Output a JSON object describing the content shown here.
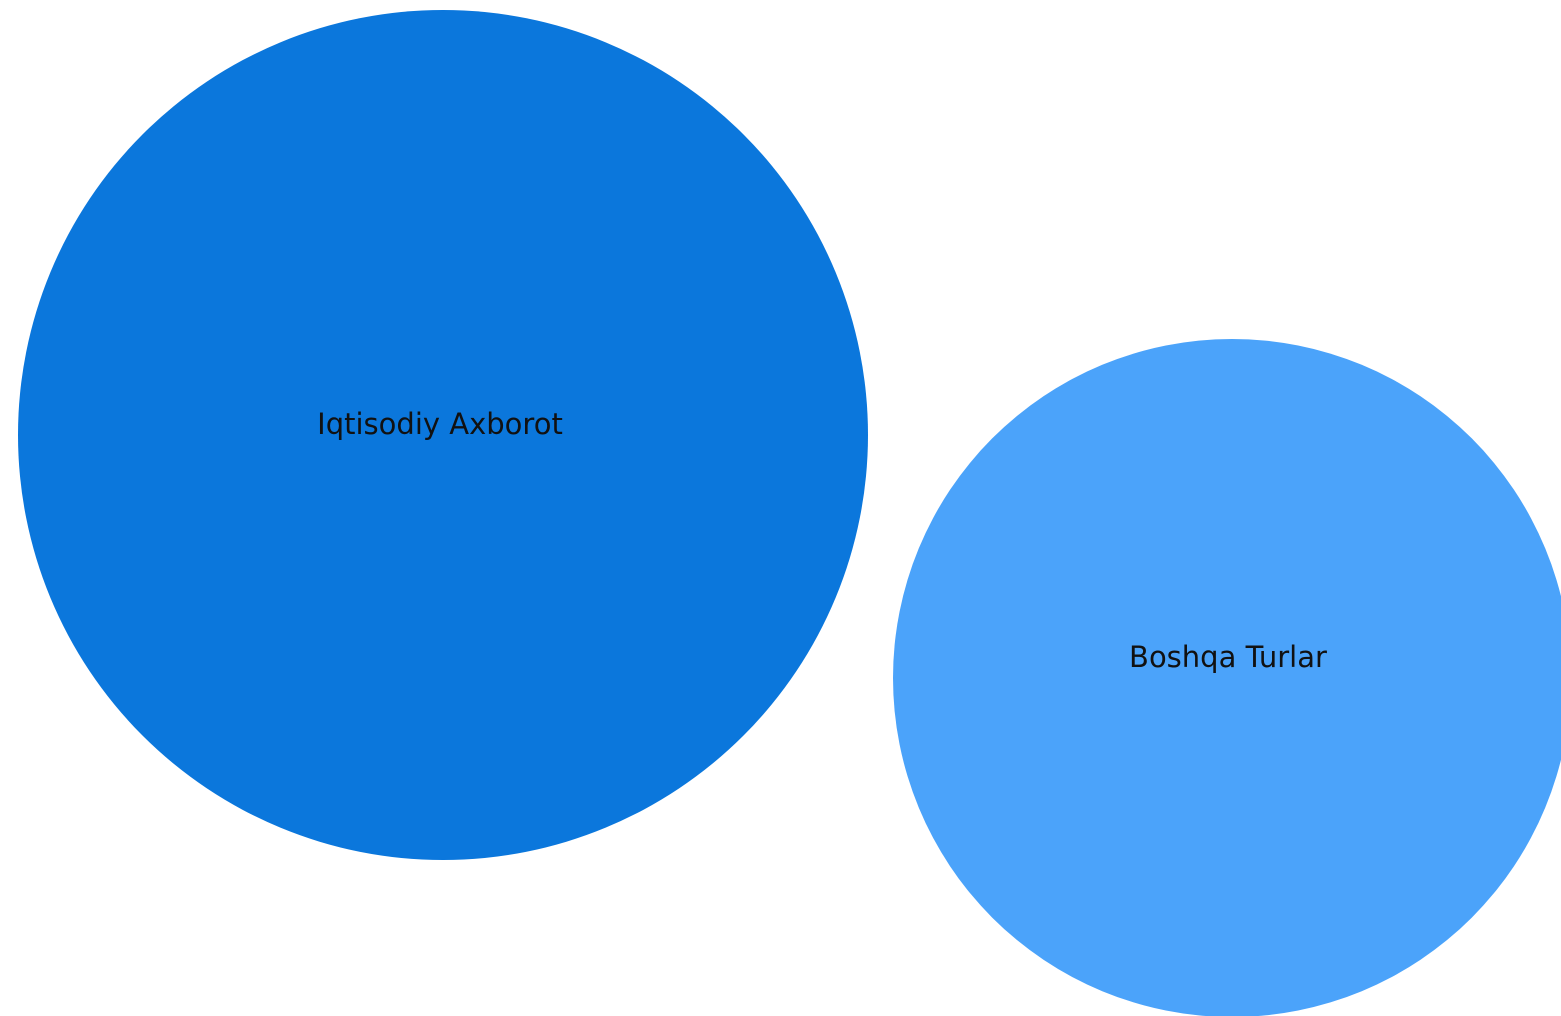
{
  "chart_data": {
    "type": "bubble",
    "title": "",
    "bubbles": [
      {
        "label": "Iqtisodiy Axborot",
        "color": "#0b77dc",
        "relative_size": 1.0
      },
      {
        "label": "Boshqa Turlar",
        "color": "#4ba3fa",
        "relative_size": 0.62
      }
    ]
  }
}
